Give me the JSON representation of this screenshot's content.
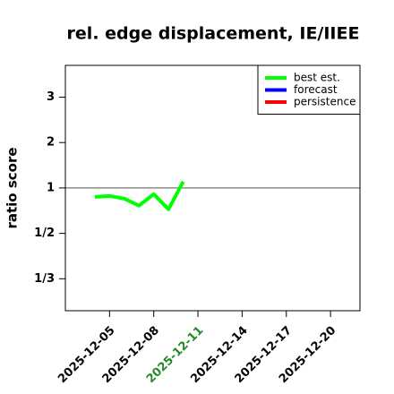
{
  "chart_data": {
    "type": "line",
    "title": "rel. edge displacement, IE/IIEE",
    "y_label": "ratio score",
    "yscale": "ratio",
    "x": [
      "2025-12-04",
      "2025-12-05",
      "2025-12-06",
      "2025-12-07",
      "2025-12-08",
      "2025-12-09",
      "2025-12-10"
    ],
    "series": [
      {
        "name": "best est.",
        "color": "#00ff00",
        "values": [
          0.835,
          0.85,
          0.81,
          0.72,
          0.88,
          0.68,
          1.14
        ]
      },
      {
        "name": "forecast",
        "color": "#0000ff",
        "values": [
          null,
          null,
          null,
          null,
          null,
          null,
          null
        ]
      },
      {
        "name": "persistence",
        "color": "#ff0000",
        "values": [
          null,
          null,
          null,
          null,
          null,
          null,
          null
        ]
      }
    ],
    "xlim": [
      "2025-12-02",
      "2025-12-22"
    ],
    "xticks": [
      "2025-12-05",
      "2025-12-08",
      "2025-12-11",
      "2025-12-14",
      "2025-12-17",
      "2025-12-20"
    ],
    "highlight_xtick": "2025-12-11",
    "highlight_color": "#228b22",
    "ylim": [
      0.27,
      3.7
    ],
    "yticks": [
      3,
      2,
      1,
      {
        "value": 0.5,
        "label": "1/2"
      },
      {
        "value": 0.3333,
        "label": "1/3"
      }
    ],
    "reference_line": 1,
    "legend": "top-right"
  }
}
